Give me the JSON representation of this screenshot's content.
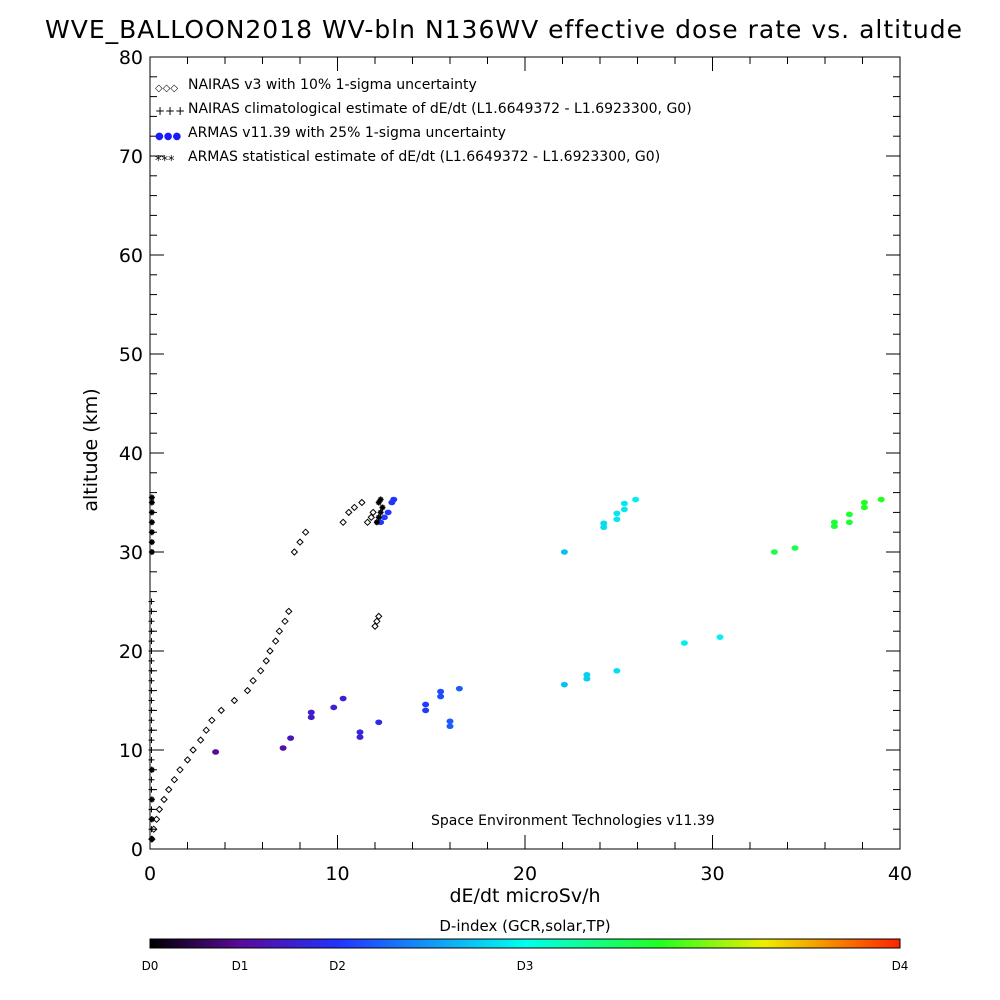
{
  "chart_data": {
    "type": "scatter",
    "title": "WVE_BALLOON2018 WV-bln N136WV effective dose rate vs. altitude",
    "xlabel": "dE/dt microSv/h",
    "ylabel": "altitude (km)",
    "xlim": [
      0,
      40
    ],
    "ylim": [
      0,
      80
    ],
    "xticks": [
      "0",
      "10",
      "20",
      "30",
      "40"
    ],
    "yticks": [
      "0",
      "10",
      "20",
      "30",
      "40",
      "50",
      "60",
      "70",
      "80"
    ],
    "legend_position": "top-left",
    "legend": [
      {
        "symbol": "◇◇◇",
        "label": "NAIRAS v3 with 10% 1-sigma uncertainty"
      },
      {
        "symbol": "+++",
        "label": "NAIRAS climatological estimate of dE/dt (L1.6649372 - L1.6923300, G0)"
      },
      {
        "symbol": "●●●",
        "label": "ARMAS v11.39 with 25% 1-sigma uncertainty"
      },
      {
        "symbol": "***",
        "label": "ARMAS statistical estimate of dE/dt (L1.6649372 - L1.6923300, G0)"
      }
    ],
    "annotation": "Space Environment Technologies v11.39",
    "colorbar": {
      "label": "D-index (GCR,solar,TP)",
      "ticks": [
        "D0",
        "D1",
        "D2",
        "D3",
        "D4"
      ],
      "tick_positions": [
        0,
        0.12,
        0.25,
        0.5,
        1.0
      ]
    },
    "series": [
      {
        "name": "NAIRAS v3 with 10% 1-sigma uncertainty",
        "marker": "diamond",
        "color": "#000000",
        "x": [
          0.1,
          0.2,
          0.35,
          0.5,
          0.75,
          1.0,
          1.3,
          1.6,
          2.0,
          2.3,
          2.7,
          3.0,
          3.3,
          3.8,
          4.5,
          5.2,
          5.5,
          5.9,
          6.2,
          6.4,
          6.7,
          6.9,
          7.2,
          7.4,
          7.7,
          8.0,
          8.3,
          10.3,
          10.6,
          10.9,
          11.3,
          11.6,
          11.8,
          11.9,
          12.0,
          12.1,
          12.2
        ],
        "y": [
          1,
          2,
          3,
          4,
          5,
          6,
          7,
          8,
          9,
          10,
          11,
          12,
          13,
          14,
          15,
          16,
          17,
          18,
          19,
          20,
          21,
          22,
          23,
          24,
          30,
          31,
          32,
          33,
          34,
          34.5,
          35,
          33,
          33.5,
          34,
          22.5,
          23,
          23.5
        ]
      },
      {
        "name": "NAIRAS climatological estimate of dE/dt (L1.6649372 - L1.6923300, G0)",
        "marker": "plus",
        "color": "#000000",
        "x": [
          0.08,
          0.08,
          0.08,
          0.08,
          0.08,
          0.08,
          0.08,
          0.08,
          0.08,
          0.08,
          0.08,
          0.08,
          0.08,
          0.08,
          0.08,
          0.08,
          0.08,
          0.08,
          0.08,
          0.08,
          0.08,
          0.08,
          0.08,
          0.08,
          0.08
        ],
        "y": [
          1,
          2,
          3,
          4,
          5,
          6,
          7,
          8,
          9,
          10,
          11,
          12,
          13,
          14,
          15,
          16,
          17,
          18,
          19,
          20,
          21,
          22,
          23,
          24,
          25
        ]
      },
      {
        "name": "ARMAS v11.39 with 25% 1-sigma uncertainty",
        "marker": "dot",
        "x": [
          3.5,
          7.1,
          7.5,
          8.6,
          8.6,
          9.8,
          10.3,
          11.2,
          11.2,
          12.2,
          14.7,
          14.7,
          15.5,
          15.5,
          16.0,
          16.0,
          16.5,
          12.3,
          12.5,
          12.7,
          12.9,
          13.0,
          22.1,
          22.1,
          23.3,
          23.3,
          24.9,
          28.5,
          30.4,
          24.2,
          24.2,
          24.9,
          24.9,
          25.3,
          25.3,
          25.9,
          33.3,
          34.4,
          36.5,
          36.5,
          37.3,
          37.3,
          38.1,
          38.1,
          39.0
        ],
        "y": [
          9.8,
          10.2,
          11.2,
          13.3,
          13.8,
          14.3,
          15.2,
          11.3,
          11.8,
          12.8,
          14.0,
          14.6,
          15.4,
          15.9,
          12.4,
          12.9,
          16.2,
          33.0,
          33.5,
          34.0,
          35.0,
          35.3,
          16.6,
          30.0,
          17.2,
          17.6,
          18.0,
          20.8,
          21.4,
          32.5,
          32.9,
          33.3,
          33.9,
          34.3,
          34.9,
          35.3,
          30.0,
          30.4,
          32.6,
          33.0,
          33.0,
          33.8,
          34.5,
          35.0,
          35.3
        ],
        "d_index": [
          0.12,
          0.14,
          0.16,
          0.18,
          0.18,
          0.2,
          0.2,
          0.2,
          0.2,
          0.22,
          0.26,
          0.26,
          0.28,
          0.28,
          0.3,
          0.3,
          0.3,
          0.26,
          0.26,
          0.25,
          0.25,
          0.25,
          0.42,
          0.42,
          0.44,
          0.44,
          0.46,
          0.48,
          0.48,
          0.46,
          0.46,
          0.47,
          0.47,
          0.47,
          0.47,
          0.48,
          0.64,
          0.64,
          0.66,
          0.66,
          0.66,
          0.66,
          0.68,
          0.68,
          0.68
        ]
      },
      {
        "name": "ARMAS statistical estimate of dE/dt (L1.6649372 - L1.6923300, G0)",
        "marker": "asterisk",
        "color": "#000000",
        "x": [
          0.1,
          0.1,
          0.1,
          0.1,
          0.1,
          0.1,
          0.1,
          0.1,
          0.1,
          0.1,
          0.1,
          12.1,
          12.2,
          12.3,
          12.4,
          12.2,
          12.3
        ],
        "y": [
          30,
          31,
          32,
          33,
          34,
          35,
          35.5,
          1,
          3,
          5,
          8,
          33,
          33.5,
          34,
          34.5,
          35,
          35.3
        ]
      }
    ]
  }
}
